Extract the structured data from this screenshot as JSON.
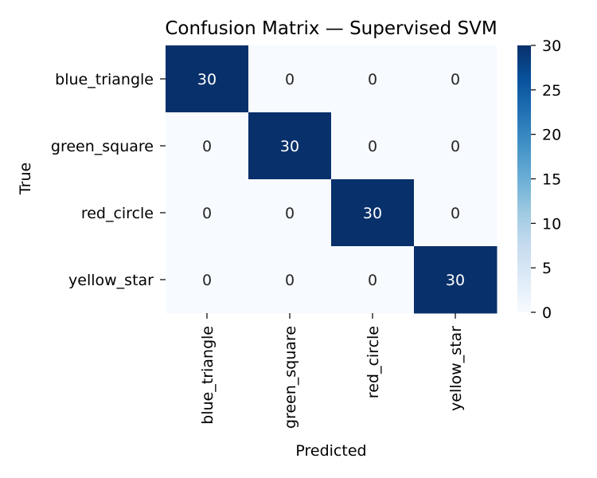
{
  "chart_data": {
    "type": "heatmap",
    "title": "Confusion Matrix — Supervised SVM",
    "xlabel": "Predicted",
    "ylabel": "True",
    "x_categories": [
      "blue_triangle",
      "green_square",
      "red_circle",
      "yellow_star"
    ],
    "y_categories": [
      "blue_triangle",
      "green_square",
      "red_circle",
      "yellow_star"
    ],
    "values": [
      [
        30,
        0,
        0,
        0
      ],
      [
        0,
        30,
        0,
        0
      ],
      [
        0,
        0,
        30,
        0
      ],
      [
        0,
        0,
        0,
        30
      ]
    ],
    "colorbar": {
      "min": 0,
      "max": 30,
      "ticks": [
        "0",
        "5",
        "10",
        "15",
        "20",
        "25",
        "30"
      ],
      "colormap": "Blues",
      "low_color": "#f7fbff",
      "high_color": "#08306b"
    },
    "annot_colors": {
      "dark_cell": "#ffffff",
      "light_cell": "#262626"
    }
  }
}
